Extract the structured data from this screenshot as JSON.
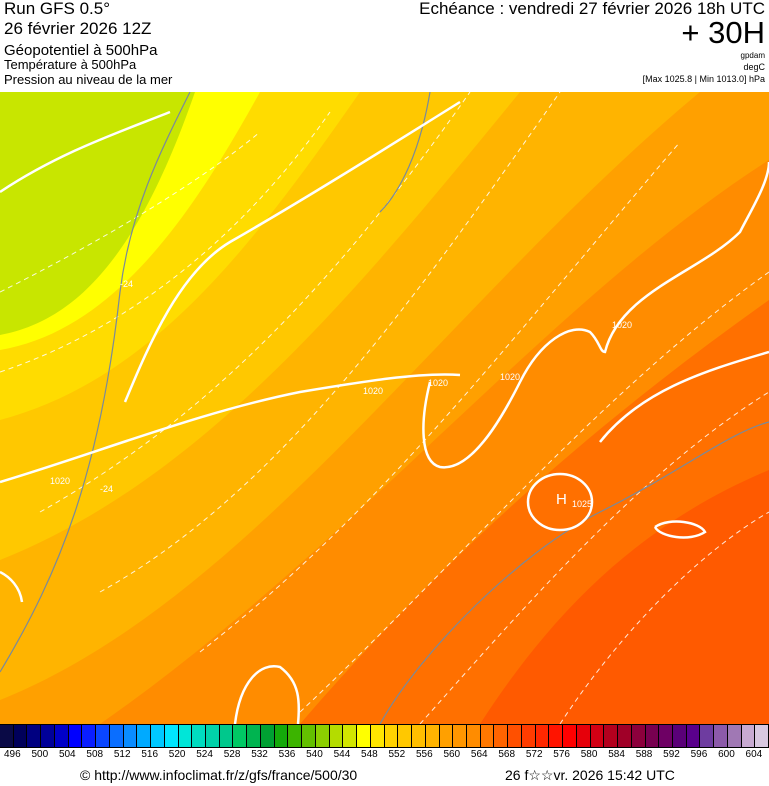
{
  "header": {
    "run": "Run GFS 0.5°",
    "date": "26 février 2026 12Z",
    "field1": "Géopotentiel à 500hPa",
    "field2": "Température à 500hPa",
    "field3": "Pression au niveau de la mer",
    "echeance": "Echéance : vendredi 27 février 2026 18h UTC",
    "lead": "+ 30H",
    "unit1": "gpdam",
    "unit2": "degC",
    "unit3": "[Max 1025.8 | Min 1013.0] hPa"
  },
  "map": {
    "high_label": "H",
    "isobar_labels": [
      "1020",
      "1020",
      "1020",
      "1020",
      "1020",
      "1025"
    ],
    "isotherm_labels": [
      "-24",
      "-24"
    ],
    "band_colors": [
      "#c8e600",
      "#ffff00",
      "#ffdc00",
      "#ffc800",
      "#ffb400",
      "#ffa000",
      "#ff8c00",
      "#ff7000",
      "#ff5a00"
    ]
  },
  "legend": {
    "labels": [
      "496",
      "500",
      "504",
      "508",
      "512",
      "516",
      "520",
      "524",
      "528",
      "532",
      "536",
      "540",
      "544",
      "548",
      "552",
      "556",
      "560",
      "564",
      "568",
      "572",
      "576",
      "580",
      "584",
      "588",
      "592",
      "596",
      "600",
      "604"
    ],
    "colors": [
      "#0a0a46",
      "#00005a",
      "#000080",
      "#000099",
      "#0000c8",
      "#0000ff",
      "#0a1eff",
      "#0a46ff",
      "#0a6eff",
      "#0a8cff",
      "#00aaff",
      "#00c8ff",
      "#00e6ff",
      "#00e6d8",
      "#00dcc0",
      "#00d2aa",
      "#00c88c",
      "#00c864",
      "#00b450",
      "#00a032",
      "#14aa0a",
      "#3cb400",
      "#64c000",
      "#8cd000",
      "#b4dc00",
      "#d2e600",
      "#ffff00",
      "#ffe600",
      "#ffd200",
      "#ffc800",
      "#ffbe00",
      "#ffb400",
      "#ffa000",
      "#ff9600",
      "#ff8c00",
      "#ff7800",
      "#ff6400",
      "#ff5000",
      "#ff3c00",
      "#ff2800",
      "#ff1400",
      "#ff0000",
      "#e6000a",
      "#d20014",
      "#b4001e",
      "#a00028",
      "#8c003c",
      "#780050",
      "#6e0064",
      "#5a0078",
      "#5a008c",
      "#6e3ca0",
      "#8c5aaa",
      "#a078b4",
      "#c8aad2",
      "#d8c8e0"
    ]
  },
  "footer": {
    "url": "© http://www.infoclimat.fr/z/gfs/france/500/30",
    "timestamp": "26 f☆☆vr. 2026 15:42 UTC"
  }
}
